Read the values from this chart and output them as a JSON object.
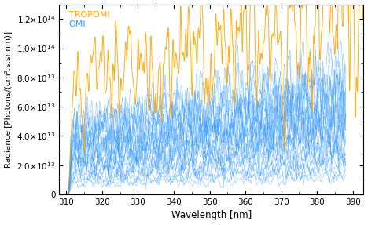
{
  "title": "",
  "xlabel": "Wavelength [nm]",
  "ylabel": "Radiance [Photons/(cm².s.sr.nm)]",
  "xlim": [
    308,
    393
  ],
  "ylim": [
    0,
    130000000000000.0
  ],
  "yticks": [
    0,
    20000000000000.0,
    40000000000000.0,
    60000000000000.0,
    80000000000000.0,
    100000000000000.0,
    120000000000000.0
  ],
  "xticks": [
    310,
    320,
    330,
    340,
    350,
    360,
    370,
    380,
    390
  ],
  "tropomi_color": "#FFA500",
  "omi_color": "#3399FF",
  "legend_tropomi": "TROPOMI",
  "legend_omi": "OMI",
  "n_omi_lines": 25,
  "wl_omi_start": 307,
  "wl_omi_end": 388,
  "wl_tropomi_start": 307,
  "wl_tropomi_end": 393,
  "n_points": 3000,
  "background_color": "#ffffff"
}
